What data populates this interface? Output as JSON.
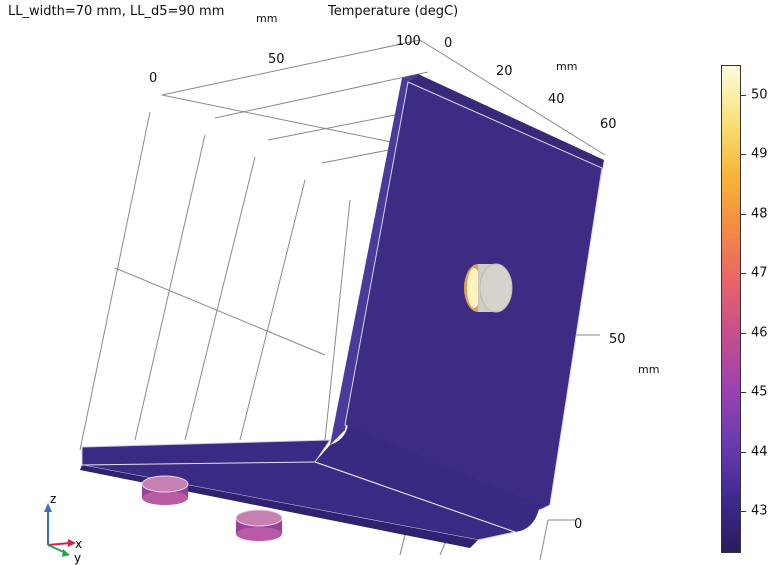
{
  "header": {
    "plot_title": "LL_width=70 mm, LL_d5=90 mm",
    "plot_title_unit": "mm",
    "legend_title": "Temperature (degC)"
  },
  "axes": {
    "top_x_ticks": [
      "0",
      "50",
      "100"
    ],
    "top_y_ticks": [
      "0",
      "20",
      "40",
      "60"
    ],
    "top_y_unit": "mm",
    "right_z_ticks": [
      "50",
      "0"
    ],
    "right_z_unit": "mm"
  },
  "colorbar": {
    "ticks": [
      "50",
      "49",
      "48",
      "47",
      "46",
      "45",
      "44",
      "43"
    ],
    "tick_values": [
      50,
      49,
      48,
      47,
      46,
      45,
      44,
      43
    ],
    "min": 42.3,
    "max": 50.5,
    "colormap": [
      "#2c1b5e",
      "#3e2a8e",
      "#6a3bb0",
      "#9a42b0",
      "#c54e8c",
      "#e8636a",
      "#f48b45",
      "#f6b637",
      "#f7e27a",
      "#fffbe0"
    ]
  },
  "triad": {
    "z": "z",
    "x": "x",
    "y": "y"
  },
  "colors": {
    "surface_main": "#3b2a80",
    "surface_dark": "#2e2268",
    "surface_light": "#4a3596",
    "boss_warm": "#c9a060",
    "boss_cap": "#d6d3cc"
  }
}
